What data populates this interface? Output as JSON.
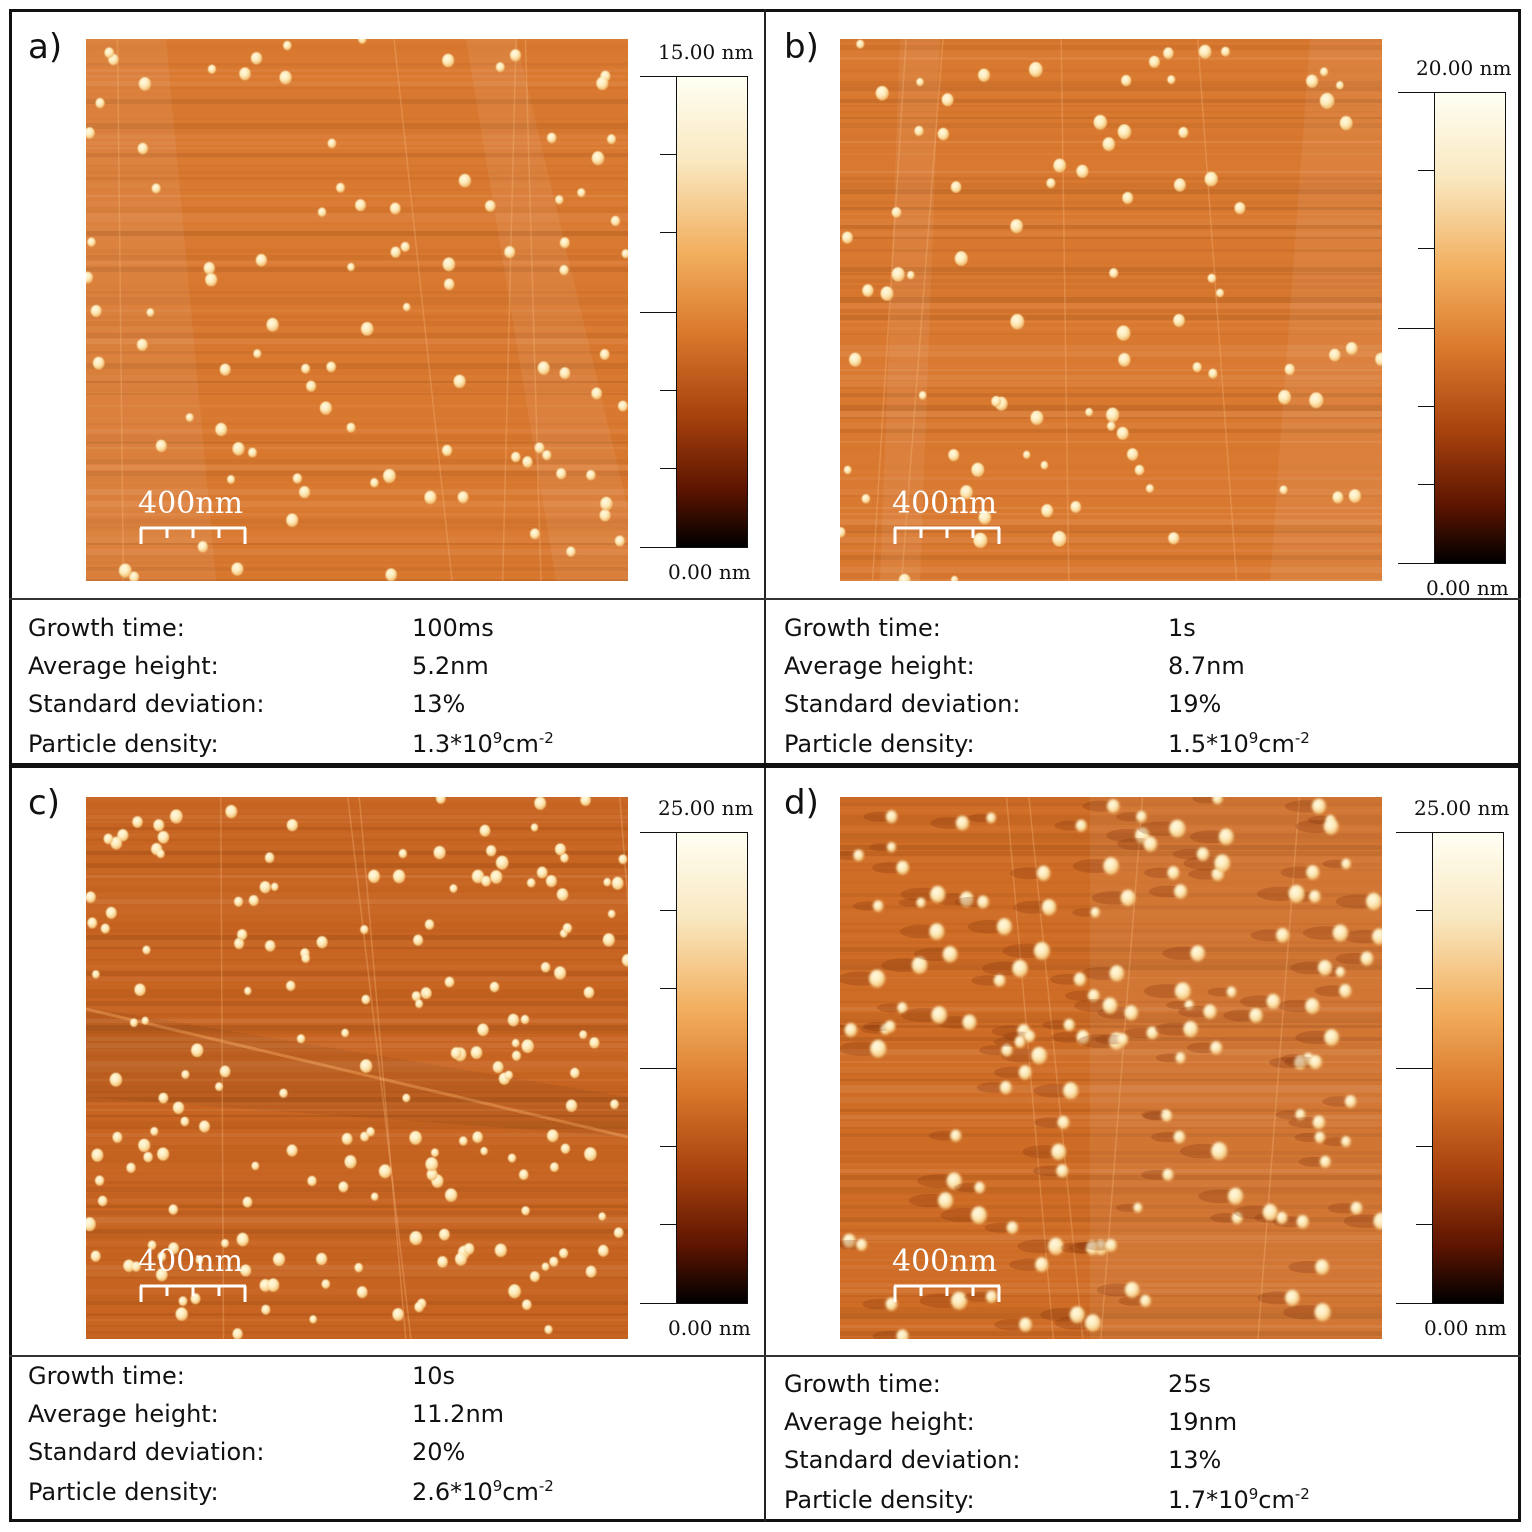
{
  "panels": [
    {
      "label": "a)",
      "colorbar_max": "15.00 nm",
      "colorbar_min": "0.00 nm",
      "scale_bar": "400nm",
      "stats": [
        {
          "label": "Growth  time:",
          "value": "100ms"
        },
        {
          "label": "Average height:",
          "value": "5.2nm"
        },
        {
          "label": "Standard deviation:",
          "value": "13%"
        },
        {
          "label": "Particle density:",
          "value_prefix": "1.3*10",
          "value_exp": "9",
          "value_unit": "cm",
          "value_unit_exp": "-2"
        }
      ]
    },
    {
      "label": "b)",
      "colorbar_max": "20.00 nm",
      "colorbar_min": "0.00 nm",
      "scale_bar": "400nm",
      "stats": [
        {
          "label": "Growth  time:",
          "value": "1s"
        },
        {
          "label": "Average height:",
          "value": "8.7nm"
        },
        {
          "label": "Standard deviation:",
          "value": "19%"
        },
        {
          "label": "Particle density:",
          "value_prefix": "1.5*10",
          "value_exp": "9",
          "value_unit": "cm",
          "value_unit_exp": "-2"
        }
      ]
    },
    {
      "label": "c)",
      "colorbar_max": "25.00 nm",
      "colorbar_min": "0.00 nm",
      "scale_bar": "400nm",
      "stats": [
        {
          "label": "Growth  time:",
          "value": "10s"
        },
        {
          "label": "Average height:",
          "value": "11.2nm"
        },
        {
          "label": "Standard deviation:",
          "value": "20%"
        },
        {
          "label": "Particle density:",
          "value_prefix": "2.6*10",
          "value_exp": "9",
          "value_unit": "cm",
          "value_unit_exp": "-2"
        }
      ]
    },
    {
      "label": "d)",
      "colorbar_max": "25.00 nm",
      "colorbar_min": "0.00 nm",
      "scale_bar": "400nm",
      "stats": [
        {
          "label": "Growth  time:",
          "value": "25s"
        },
        {
          "label": "Average height:",
          "value": "19nm"
        },
        {
          "label": "Standard deviation:",
          "value": "13%"
        },
        {
          "label": "Particle density:",
          "value_prefix": "1.7*10",
          "value_exp": "9",
          "value_unit": "cm",
          "value_unit_exp": "-2"
        }
      ]
    }
  ],
  "colors": {
    "substrate_a": "#d9782f",
    "substrate_b": "#d9782f",
    "substrate_c": "#c76421",
    "substrate_d": "#cf6c25",
    "particle": "#fde9b6"
  }
}
